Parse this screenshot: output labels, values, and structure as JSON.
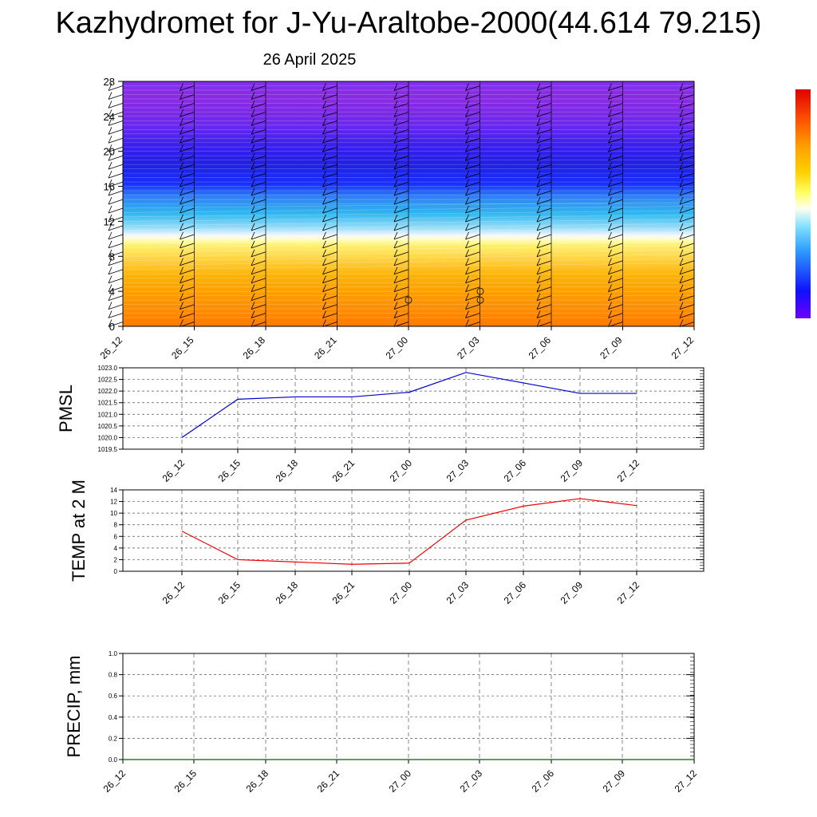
{
  "title": "Kazhydromet for J-Yu-Araltobe-2000(44.614 79.215)",
  "subtitle": "26 April 2025",
  "colors": {
    "purple": "#8a2be2",
    "blue": "#1010ff",
    "cyan": "#30b8f0",
    "white": "#f8f8ff",
    "yellow": "#fff070",
    "orange": "#ffa500",
    "pmsl_line": "#0000cc",
    "temp_line": "#ee0000",
    "precip_line": "#006400"
  },
  "chart_data": [
    {
      "type": "heatmap",
      "title": "",
      "ylabel": "",
      "x_tick_labels": [
        "26_12",
        "26_15",
        "26_18",
        "26_21",
        "27_00",
        "27_03",
        "27_06",
        "27_09",
        "27_12"
      ],
      "y_ticks": [
        0,
        4,
        8,
        12,
        16,
        20,
        24,
        28
      ],
      "ylim": [
        0,
        28
      ],
      "levels": [
        0,
        1,
        2,
        3,
        4,
        5,
        6,
        7,
        8,
        9,
        10,
        11,
        12,
        13,
        14,
        15,
        16,
        17,
        18,
        19,
        20,
        21,
        22,
        23,
        24,
        25,
        26,
        27,
        28
      ],
      "color_bands": [
        {
          "from": 0,
          "to": 6,
          "color": "orange"
        },
        {
          "from": 6,
          "to": 10,
          "color": "yellow"
        },
        {
          "from": 10,
          "to": 11,
          "color": "white"
        },
        {
          "from": 11,
          "to": 15,
          "color": "cyan"
        },
        {
          "from": 15,
          "to": 22,
          "color": "blue"
        },
        {
          "from": 22,
          "to": 28,
          "color": "purple"
        }
      ],
      "wind_barbs": "present at each time step",
      "colorbar": "right, no labels"
    },
    {
      "type": "line",
      "ylabel": "PMSL",
      "x": [
        "26_12",
        "26_15",
        "26_18",
        "26_21",
        "27_00",
        "27_03",
        "27_06",
        "27_09",
        "27_12"
      ],
      "series": [
        {
          "values": [
            1020.0,
            1021.65,
            1021.75,
            1021.75,
            1021.95,
            1022.8,
            1022.35,
            1021.9,
            1021.9
          ]
        }
      ],
      "y_ticks": [
        "1019.5",
        "1020.0",
        "1020.5",
        "1021.0",
        "1021.5",
        "1022.0",
        "1022.5",
        "1023.0"
      ],
      "ylim": [
        1019.5,
        1023.0
      ],
      "grid": true
    },
    {
      "type": "line",
      "ylabel": "TEMP at 2 M",
      "x": [
        "26_12",
        "26_15",
        "26_18",
        "26_21",
        "27_00",
        "27_03",
        "27_06",
        "27_09",
        "27_12"
      ],
      "series": [
        {
          "values": [
            6.9,
            2.0,
            1.6,
            1.2,
            1.4,
            8.8,
            11.2,
            12.5,
            11.3
          ]
        }
      ],
      "y_ticks": [
        "0",
        "2",
        "4",
        "6",
        "8",
        "10",
        "12",
        "14"
      ],
      "ylim": [
        0,
        14
      ],
      "grid": true
    },
    {
      "type": "line",
      "ylabel": "PRECIP, mm",
      "x": [
        "26_12",
        "26_15",
        "26_18",
        "26_21",
        "27_00",
        "27_03",
        "27_06",
        "27_09",
        "27_12"
      ],
      "series": [
        {
          "values": [
            0,
            0,
            0,
            0,
            0,
            0,
            0,
            0,
            0
          ]
        }
      ],
      "y_ticks": [
        "0.0",
        "0.2",
        "0.4",
        "0.6",
        "0.8",
        "1.0"
      ],
      "ylim": [
        0,
        1.0
      ],
      "grid": true
    }
  ]
}
